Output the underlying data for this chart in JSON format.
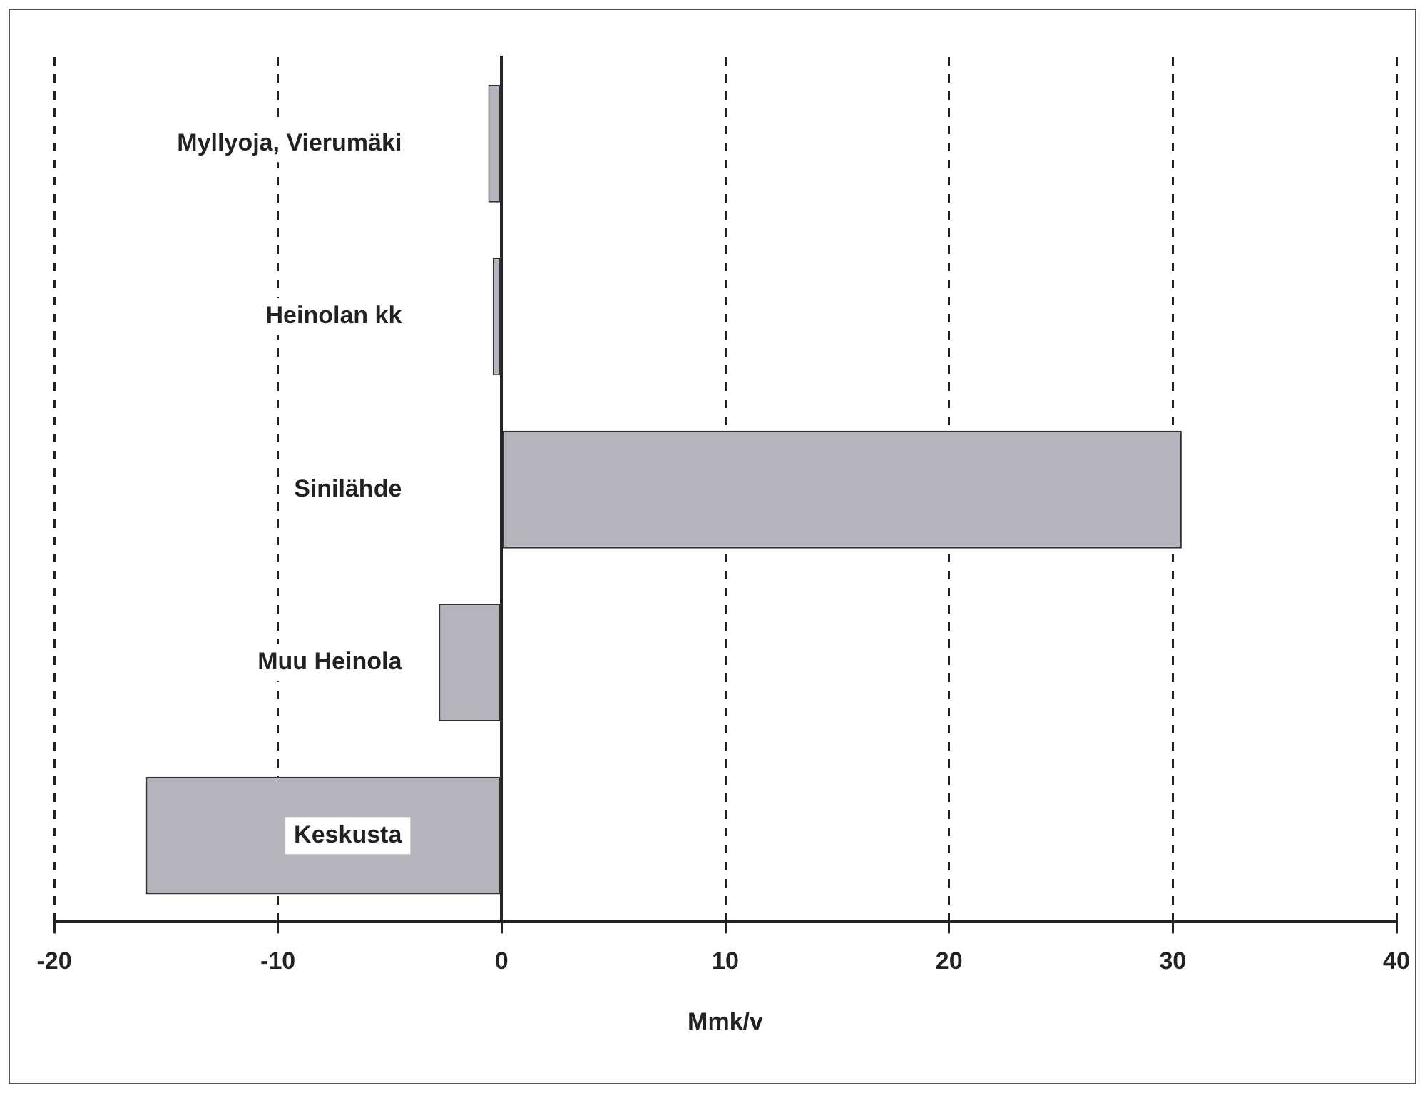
{
  "chart_data": {
    "type": "bar",
    "orientation": "horizontal",
    "xlabel": "Mmk/v",
    "categories": [
      "Myllyoja, Vierumäki",
      "Heinolan kk",
      "Sinilähde",
      "Muu Heinola",
      "Keskusta"
    ],
    "values": [
      -0.6,
      -0.4,
      30.4,
      -2.8,
      -15.9
    ],
    "color": "#b4b4bc",
    "xlim": [
      -20,
      40
    ],
    "xticks": [
      -20,
      -10,
      0,
      10,
      20,
      30,
      40
    ],
    "grid": "x"
  }
}
